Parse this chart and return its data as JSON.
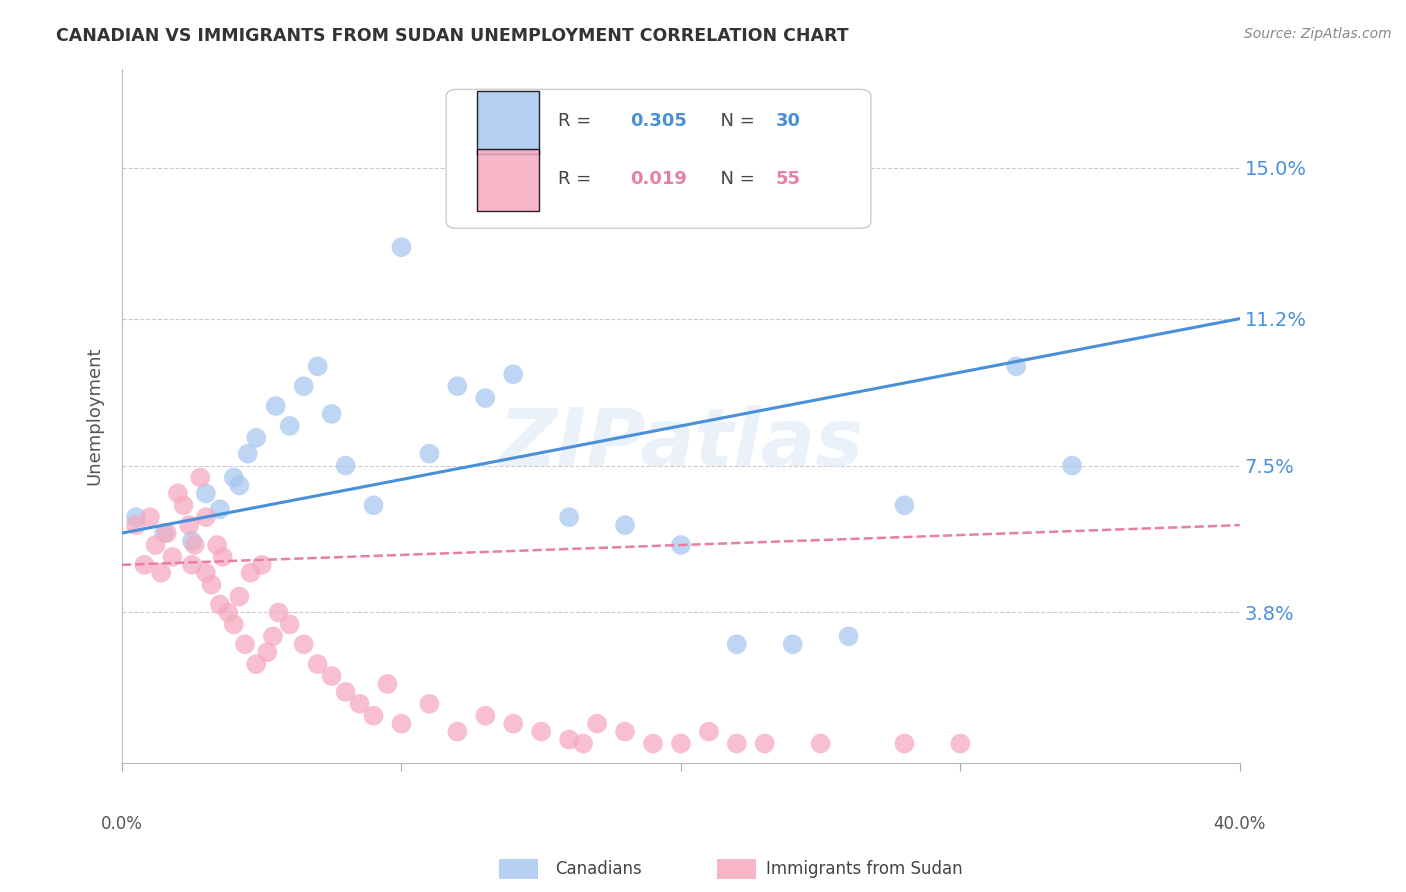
{
  "title": "CANADIAN VS IMMIGRANTS FROM SUDAN UNEMPLOYMENT CORRELATION CHART",
  "source": "Source: ZipAtlas.com",
  "ylabel": "Unemployment",
  "ytick_labels": [
    "15.0%",
    "11.2%",
    "7.5%",
    "3.8%"
  ],
  "ytick_values": [
    0.15,
    0.112,
    0.075,
    0.038
  ],
  "xlim": [
    0.0,
    0.4
  ],
  "ylim": [
    0.0,
    0.175
  ],
  "watermark": "ZIPatlas",
  "canadians_color": "#a8c8f0",
  "immigrants_color": "#f5aabf",
  "line_blue": "#4a90d9",
  "line_pink": "#e87fa0",
  "canadians_x": [
    0.005,
    0.015,
    0.025,
    0.03,
    0.035,
    0.04,
    0.042,
    0.045,
    0.048,
    0.055,
    0.06,
    0.065,
    0.07,
    0.075,
    0.08,
    0.09,
    0.1,
    0.11,
    0.12,
    0.13,
    0.14,
    0.16,
    0.18,
    0.2,
    0.22,
    0.24,
    0.26,
    0.28,
    0.32,
    0.34
  ],
  "canadians_y": [
    0.062,
    0.058,
    0.056,
    0.068,
    0.064,
    0.072,
    0.07,
    0.078,
    0.082,
    0.09,
    0.085,
    0.095,
    0.1,
    0.088,
    0.075,
    0.065,
    0.13,
    0.078,
    0.095,
    0.092,
    0.098,
    0.062,
    0.06,
    0.055,
    0.03,
    0.03,
    0.032,
    0.065,
    0.1,
    0.075
  ],
  "immigrants_x": [
    0.005,
    0.008,
    0.01,
    0.012,
    0.014,
    0.016,
    0.018,
    0.02,
    0.022,
    0.024,
    0.025,
    0.026,
    0.028,
    0.03,
    0.03,
    0.032,
    0.034,
    0.035,
    0.036,
    0.038,
    0.04,
    0.042,
    0.044,
    0.046,
    0.048,
    0.05,
    0.052,
    0.054,
    0.056,
    0.06,
    0.065,
    0.07,
    0.075,
    0.08,
    0.085,
    0.09,
    0.095,
    0.1,
    0.11,
    0.12,
    0.13,
    0.14,
    0.15,
    0.16,
    0.165,
    0.17,
    0.18,
    0.19,
    0.2,
    0.21,
    0.22,
    0.23,
    0.25,
    0.28,
    0.3
  ],
  "immigrants_y": [
    0.06,
    0.05,
    0.062,
    0.055,
    0.048,
    0.058,
    0.052,
    0.068,
    0.065,
    0.06,
    0.05,
    0.055,
    0.072,
    0.048,
    0.062,
    0.045,
    0.055,
    0.04,
    0.052,
    0.038,
    0.035,
    0.042,
    0.03,
    0.048,
    0.025,
    0.05,
    0.028,
    0.032,
    0.038,
    0.035,
    0.03,
    0.025,
    0.022,
    0.018,
    0.015,
    0.012,
    0.02,
    0.01,
    0.015,
    0.008,
    0.012,
    0.01,
    0.008,
    0.006,
    0.005,
    0.01,
    0.008,
    0.005,
    0.005,
    0.008,
    0.005,
    0.005,
    0.005,
    0.005,
    0.005
  ],
  "blue_line_x": [
    0.0,
    0.4
  ],
  "blue_line_y": [
    0.058,
    0.112
  ],
  "pink_line_x": [
    0.0,
    0.4
  ],
  "pink_line_y": [
    0.05,
    0.06
  ],
  "background_color": "#ffffff",
  "grid_color": "#cccccc"
}
